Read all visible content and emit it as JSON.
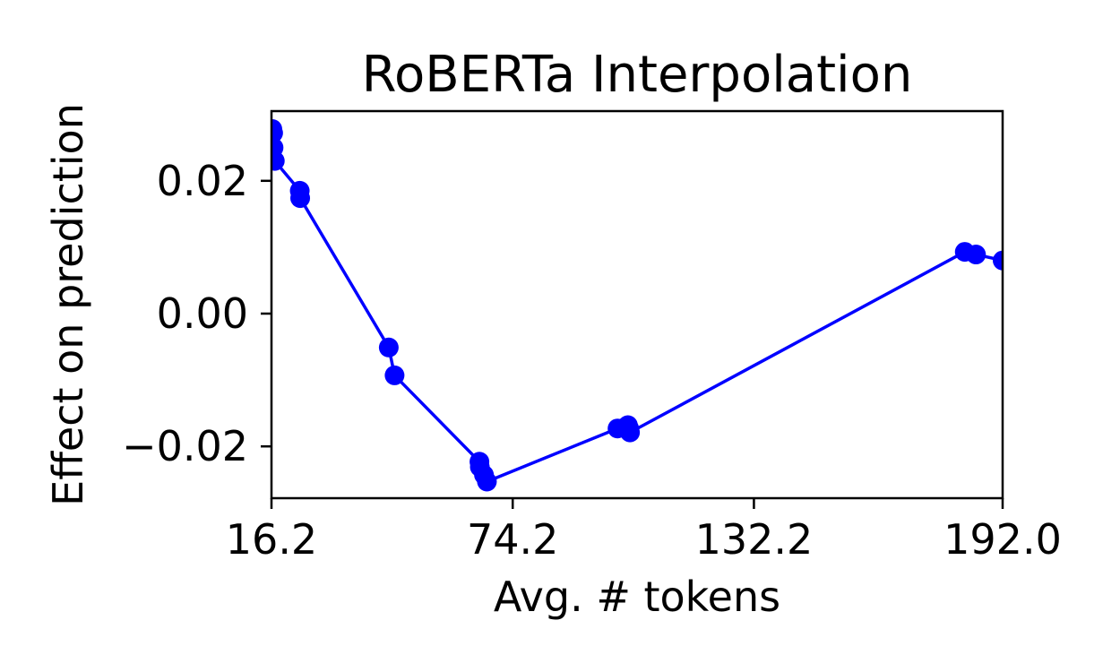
{
  "chart_data": {
    "type": "line",
    "title": "RoBERTa Interpolation",
    "xlabel": "Avg. # tokens",
    "ylabel": "Effect on prediction",
    "xlim": [
      16.2,
      192.0
    ],
    "ylim": [
      -0.0278,
      0.0305
    ],
    "xticks": [
      16.2,
      74.2,
      132.2,
      192.0
    ],
    "xtick_labels": [
      "16.2",
      "74.2",
      "132.2",
      "192.0"
    ],
    "yticks": [
      -0.02,
      0.0,
      0.02
    ],
    "ytick_labels": [
      "−0.02",
      "0.00",
      "0.02"
    ],
    "grid": false,
    "series": [
      {
        "color": "#0000ff",
        "marker": "circle",
        "points": [
          {
            "x": 16.4,
            "y": 0.0278
          },
          {
            "x": 16.6,
            "y": 0.0272
          },
          {
            "x": 16.7,
            "y": 0.025
          },
          {
            "x": 17.0,
            "y": 0.023
          },
          {
            "x": 23.0,
            "y": 0.0185
          },
          {
            "x": 23.1,
            "y": 0.0174
          },
          {
            "x": 44.4,
            "y": -0.0051
          },
          {
            "x": 45.8,
            "y": -0.0093
          },
          {
            "x": 66.2,
            "y": -0.0223
          },
          {
            "x": 66.3,
            "y": -0.0231
          },
          {
            "x": 67.3,
            "y": -0.0243
          },
          {
            "x": 68.0,
            "y": -0.0253
          },
          {
            "x": 99.4,
            "y": -0.0173
          },
          {
            "x": 101.0,
            "y": -0.0172
          },
          {
            "x": 101.9,
            "y": -0.0168
          },
          {
            "x": 102.2,
            "y": -0.0173
          },
          {
            "x": 102.4,
            "y": -0.0179
          },
          {
            "x": 182.9,
            "y": 0.0093
          },
          {
            "x": 185.6,
            "y": 0.0089
          },
          {
            "x": 192.0,
            "y": 0.008
          }
        ]
      }
    ]
  }
}
